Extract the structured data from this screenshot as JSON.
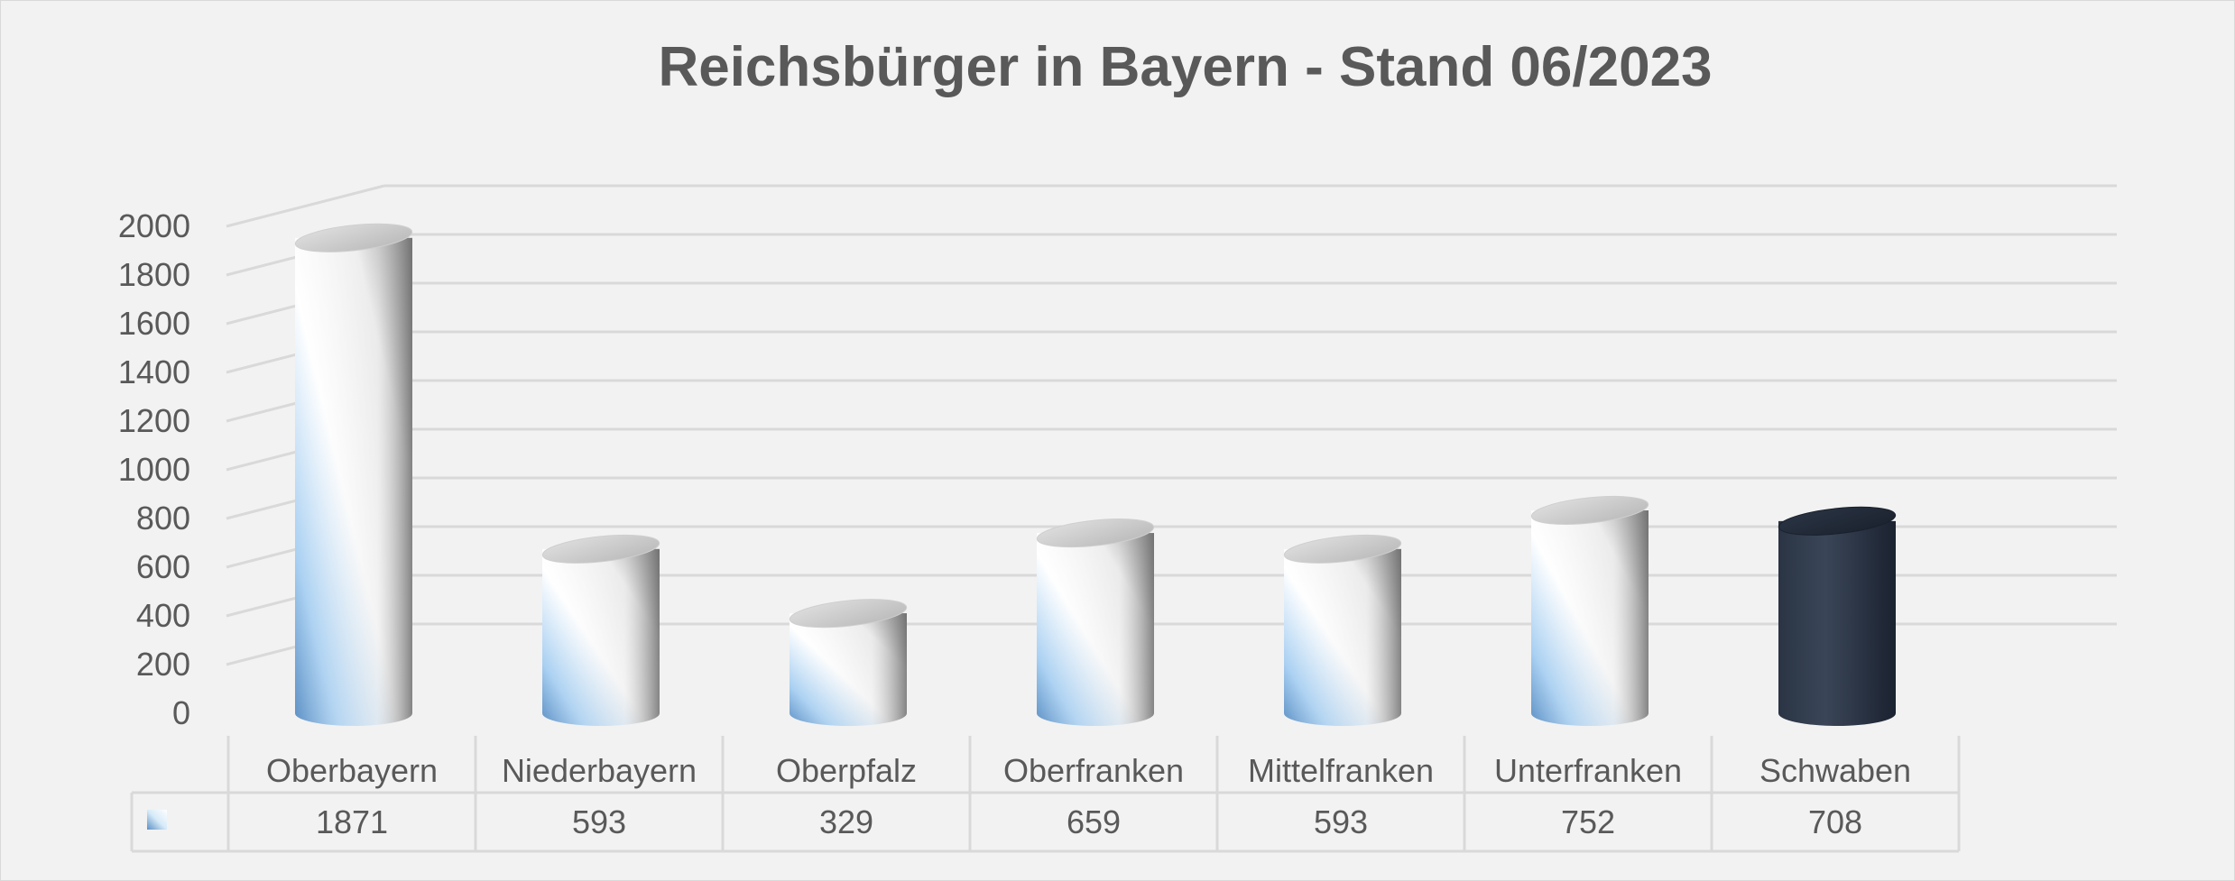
{
  "chart_data": {
    "type": "bar",
    "style": "3d-cylinder",
    "title": "Reichsbürger in Bayern  - Stand 06/2023",
    "categories": [
      "Oberbayern",
      "Niederbayern",
      "Oberpfalz",
      "Oberfranken",
      "Mittelfranken",
      "Unterfranken",
      "Schwaben"
    ],
    "series": [
      {
        "values": [
          1871,
          593,
          329,
          659,
          593,
          752,
          708
        ]
      }
    ],
    "ylim": [
      0,
      2000
    ],
    "yticks": [
      0,
      200,
      400,
      600,
      800,
      1000,
      1200,
      1400,
      1600,
      1800,
      2000
    ],
    "grid": true,
    "data_table": true,
    "highlight_category": "Schwaben",
    "colors": {
      "bar_light": "#ffffff",
      "bar_blue": "#9cc7ee",
      "bar_dark": "#2d3848",
      "grid": "#d9d9d9",
      "text": "#595959"
    }
  }
}
